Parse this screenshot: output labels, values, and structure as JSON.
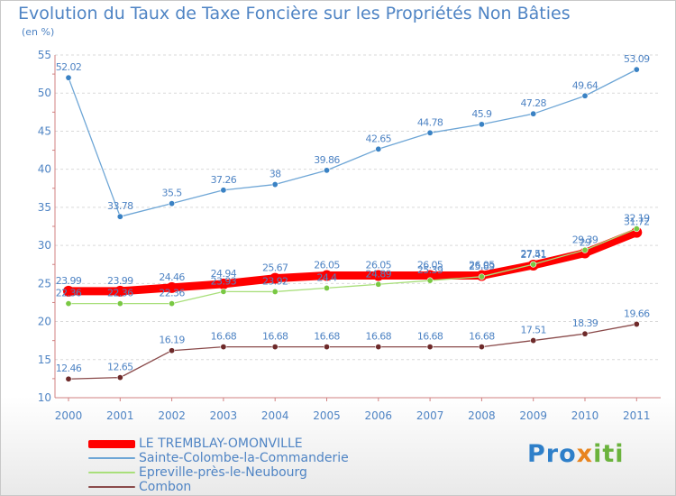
{
  "chart_data": {
    "type": "line",
    "title": "Evolution du Taux de Taxe Foncière sur les Propriétés Non Bâties",
    "subtitle": "(en %)",
    "x": [
      "2000",
      "2001",
      "2002",
      "2003",
      "2004",
      "2005",
      "2006",
      "2007",
      "2008",
      "2009",
      "2010",
      "2011"
    ],
    "ylim": [
      10,
      55
    ],
    "yticks": [
      10,
      15,
      20,
      25,
      30,
      35,
      40,
      45,
      50,
      55
    ],
    "grid": "horizontal",
    "legend_position": "bottom-left",
    "series": [
      {
        "name": "LE TREMBLAY-OMONVILLE",
        "color": "#ff0000",
        "marker_color": "#ff0000",
        "values": [
          23.99,
          23.99,
          24.46,
          24.94,
          25.67,
          26.05,
          26.05,
          26.05,
          26.05,
          27.41,
          29.0,
          31.72
        ],
        "labels": [
          "23.99",
          "23.99",
          "24.46",
          "24.94",
          "25.67",
          "26.05",
          "26.05",
          "26.05",
          "26.05",
          "27.41",
          "29",
          "31.72"
        ]
      },
      {
        "name": "Sainte-Colombe-la-Commanderie",
        "color": "#6ea6d6",
        "marker_color": "#3a82c4",
        "values": [
          52.02,
          33.78,
          35.5,
          37.26,
          38,
          39.86,
          42.65,
          44.78,
          45.9,
          47.28,
          49.64,
          53.09
        ],
        "labels": [
          "52.02",
          "33.78",
          "35.5",
          "37.26",
          "38",
          "39.86",
          "42.65",
          "44.78",
          "45.9",
          "47.28",
          "49.64",
          "53.09"
        ]
      },
      {
        "name": "Epreville-près-le-Neubourg",
        "color": "#a8df7a",
        "marker_color": "#79c843",
        "values": [
          22.36,
          22.36,
          22.36,
          23.93,
          23.92,
          24.4,
          24.89,
          25.39,
          25.89,
          27.51,
          29.39,
          32.19
        ],
        "labels": [
          "22.36",
          "22.36",
          "22.36",
          "23.93",
          "23.92",
          "24.4",
          "24.89",
          "25.39",
          "25.89",
          "27.51",
          "29.39",
          "32.19"
        ]
      },
      {
        "name": "Combon",
        "color": "#8a4a4a",
        "marker_color": "#6e2a2a",
        "values": [
          12.46,
          12.65,
          16.19,
          16.68,
          16.68,
          16.68,
          16.68,
          16.68,
          16.68,
          17.51,
          18.39,
          19.66
        ],
        "labels": [
          "12.46",
          "12.65",
          "16.19",
          "16.68",
          "16.68",
          "16.68",
          "16.68",
          "16.68",
          "16.68",
          "17.51",
          "18.39",
          "19.66"
        ]
      }
    ]
  },
  "legend": {
    "items": [
      {
        "label": "LE TREMBLAY-OMONVILLE",
        "color": "#ff0000"
      },
      {
        "label": "Sainte-Colombe-la-Commanderie",
        "color": "#6ea6d6"
      },
      {
        "label": "Epreville-près-le-Neubourg",
        "color": "#a8df7a"
      },
      {
        "label": "Combon",
        "color": "#8a4a4a"
      }
    ]
  },
  "logo": {
    "part1": "Pro",
    "part2": "x",
    "part3": "iti"
  }
}
